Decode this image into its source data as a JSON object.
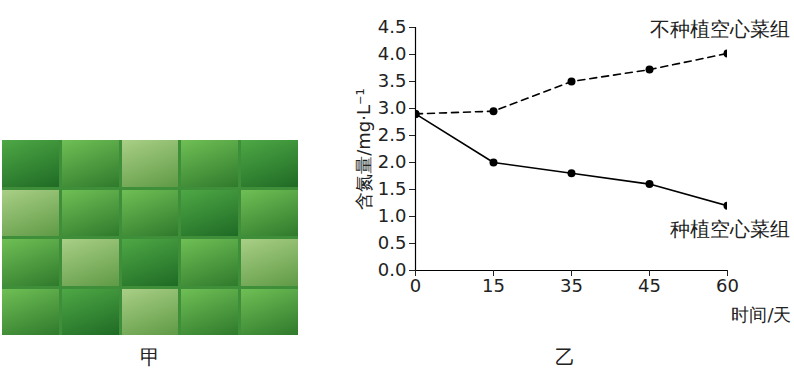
{
  "photo": {
    "caption": "甲"
  },
  "chart_data": {
    "type": "line",
    "caption": "乙",
    "x_label": "时间/天",
    "y_label": "含氮量/mg·L⁻¹",
    "categories": [
      "0",
      "15",
      "35",
      "45",
      "60"
    ],
    "series": [
      {
        "name": "不种植空心菜组",
        "color": "#000000",
        "line_style": "dashed",
        "marker": "circle",
        "values": [
          2.9,
          2.95,
          3.5,
          3.72,
          4.02
        ]
      },
      {
        "name": "种植空心菜组",
        "color": "#000000",
        "line_style": "solid",
        "marker": "circle",
        "values": [
          2.9,
          2.0,
          1.8,
          1.6,
          1.2
        ]
      }
    ],
    "ylim": [
      0,
      4.5
    ],
    "yticks": [
      0,
      0.5,
      1,
      1.5,
      2,
      2.5,
      3,
      3.5,
      4,
      4.5
    ],
    "grid": false
  }
}
